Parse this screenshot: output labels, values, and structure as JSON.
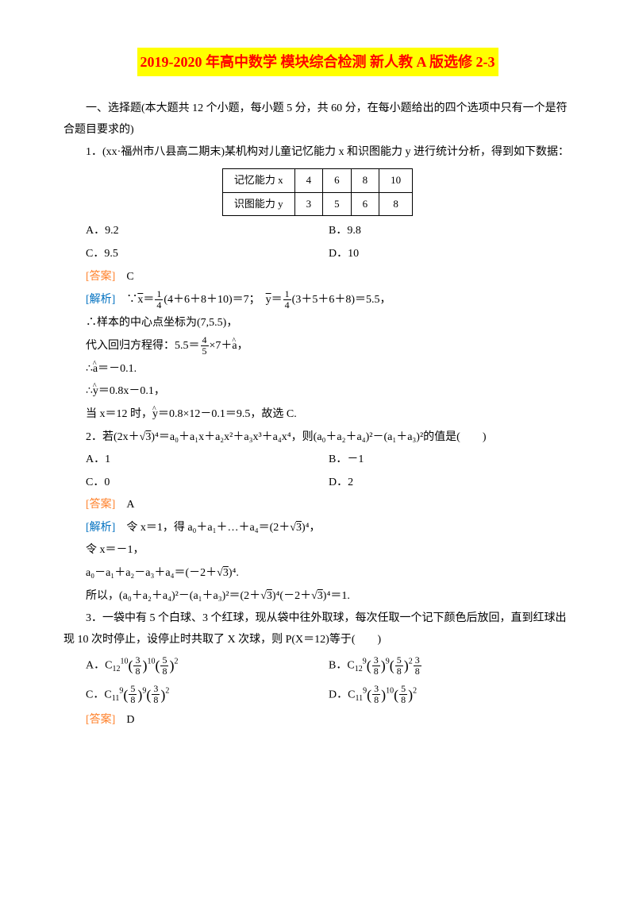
{
  "title": "2019-2020 年高中数学 模块综合检测 新人教 A 版选修 2-3",
  "intro": "一、选择题(本大题共 12 个小题，每小题 5 分，共 60 分，在每小题给出的四个选项中只有一个是符合题目要求的)",
  "q1": {
    "text": "1．(xx·福州市八县高二期末)某机构对儿童记忆能力 x 和识图能力 y 进行统计分析，得到如下数据：",
    "table_h1": "记忆能力 x",
    "table_h2": "识图能力 y",
    "r1": [
      "4",
      "6",
      "8",
      "10"
    ],
    "r2": [
      "3",
      "5",
      "6",
      "8"
    ],
    "optA": "A．9.2",
    "optB": "B．9.8",
    "optC": "C．9.5",
    "optD": "D．10",
    "ansLabel": "[答案]",
    "ans": "C",
    "jxLabel": "[解析]",
    "jx1a": "∵",
    "jx1b": "(4＋6＋8＋10)＝7；",
    "jx1c": "(3＋5＋6＋8)＝5.5，",
    "jx2": "∴样本的中心点坐标为(7,5.5)，",
    "jx3a": "代入回归方程得：5.5＝",
    "jx3b": "×7＋",
    "jx3c": "，",
    "jx4": "＝－0.1.",
    "jx5": "＝0.8x－0.1，",
    "jx6a": "当 x＝12 时，",
    "jx6b": "＝0.8×12－0.1＝9.5，故选 C."
  },
  "q2": {
    "text1": "2．若(2x＋",
    "text2": ")⁴＝a₀＋a₁x＋a₂x²＋a₃x³＋a₄x⁴，则(a₀＋a₂＋a₄)²－(a₁＋a₃)²的值是(　　)",
    "optA": "A．1",
    "optB": "B．－1",
    "optC": "C．0",
    "optD": "D．2",
    "ansLabel": "[答案]",
    "ans": "A",
    "jxLabel": "[解析]",
    "jx1a": "令 x＝1，得 a₀＋a₁＋…＋a₄＝(2＋",
    "jx1b": ")⁴，",
    "jx2": "令 x＝－1，",
    "jx3a": "a₀－a₁＋a₂－a₃＋a₄＝(－2＋",
    "jx3b": ")⁴.",
    "jx4a": "所以，(a₀＋a₂＋a₄)²－(a₁＋a₃)²＝(2＋",
    "jx4b": ")⁴(－2＋",
    "jx4c": ")⁴＝1."
  },
  "q3": {
    "text": "3．一袋中有 5 个白球、3 个红球，现从袋中往外取球，每次任取一个记下颜色后放回，直到红球出现 10 次时停止，设停止时共取了 X 次球，则 P(X＝12)等于(　　)",
    "optA_pre": "A．C",
    "optA_sub": "12",
    "optA_sup": "10",
    "optB_pre": "B．C",
    "optB_sub": "12",
    "optB_sup": "9",
    "optC_pre": "C．C",
    "optC_sub": "11",
    "optC_sup": "9",
    "optD_pre": "D．C",
    "optD_sub": "11",
    "optD_sup": "9",
    "ansLabel": "[答案]",
    "ans": "D"
  },
  "fracs": {
    "n1": "1",
    "d4": "4",
    "n4": "4",
    "d5": "5",
    "n3": "3",
    "d8": "8",
    "n5": "5"
  },
  "sqrt3": "3",
  "xbar": "x",
  "ybar": "y",
  "ahat": "a",
  "yhat": "y"
}
